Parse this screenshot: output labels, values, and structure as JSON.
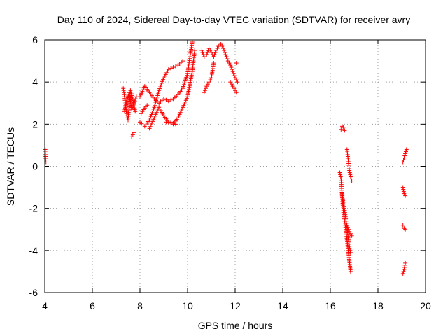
{
  "chart_data": {
    "type": "scatter",
    "title": "Day 110 of 2024, Sidereal Day-to-day VTEC variation (SDTVAR) for receiver avry",
    "xlabel": "GPS time / hours",
    "ylabel": "SDTVAR / TECUs",
    "xlim": [
      4,
      20
    ],
    "ylim": [
      -6,
      6
    ],
    "xticks": [
      4,
      6,
      8,
      10,
      12,
      14,
      16,
      18,
      20
    ],
    "yticks": [
      -6,
      -4,
      -2,
      0,
      2,
      4,
      6
    ],
    "grid": true,
    "legend": "none",
    "marker": "+",
    "series_color": "#ff0000",
    "segments": [
      {
        "x": [
          4.02,
          4.04,
          4.05
        ],
        "y": [
          0.8,
          0.3,
          0.2
        ]
      },
      {
        "x": [
          7.3,
          7.35,
          7.4,
          7.45,
          7.5,
          7.55,
          7.6,
          7.7,
          7.8
        ],
        "y": [
          3.7,
          3.3,
          2.8,
          2.4,
          2.2,
          3.0,
          3.6,
          3.2,
          2.6
        ]
      },
      {
        "x": [
          7.35,
          7.45,
          7.55,
          7.65,
          7.75,
          7.85
        ],
        "y": [
          2.6,
          3.1,
          3.5,
          2.7,
          3.0,
          3.3
        ]
      },
      {
        "x": [
          7.65,
          7.7,
          7.75
        ],
        "y": [
          1.4,
          1.5,
          1.6
        ]
      },
      {
        "x": [
          8.0,
          8.2,
          8.4,
          8.6,
          8.8,
          9.0,
          9.2,
          9.4,
          9.6,
          9.8,
          10.0,
          10.1,
          10.2
        ],
        "y": [
          3.3,
          3.8,
          3.5,
          3.2,
          3.0,
          3.2,
          3.1,
          3.2,
          3.4,
          3.7,
          4.4,
          5.2,
          5.9
        ]
      },
      {
        "x": [
          8.0,
          8.2,
          8.4,
          8.6,
          8.8,
          9.0,
          9.2,
          9.4,
          9.6,
          9.8
        ],
        "y": [
          2.1,
          1.9,
          2.2,
          2.8,
          3.6,
          4.2,
          4.6,
          4.7,
          4.8,
          5.0
        ]
      },
      {
        "x": [
          8.05,
          8.15,
          8.3
        ],
        "y": [
          2.5,
          2.7,
          2.9
        ]
      },
      {
        "x": [
          8.4,
          8.6,
          8.8,
          9.0,
          9.2,
          9.4,
          9.6,
          9.8,
          10.0,
          10.2,
          10.3
        ],
        "y": [
          1.8,
          2.3,
          2.8,
          2.4,
          2.1,
          2.0,
          2.3,
          2.8,
          3.3,
          4.5,
          5.5
        ]
      },
      {
        "x": [
          9.1,
          9.3,
          9.5
        ],
        "y": [
          2.1,
          2.1,
          2.0
        ]
      },
      {
        "x": [
          10.6,
          10.7,
          10.8,
          10.9,
          11.0,
          11.1,
          11.2,
          11.3,
          11.4,
          11.5,
          11.6,
          11.7,
          11.8,
          11.9,
          12.0,
          12.1
        ],
        "y": [
          5.5,
          5.2,
          5.3,
          5.6,
          5.4,
          5.2,
          5.5,
          5.7,
          5.8,
          5.6,
          5.3,
          5.0,
          4.8,
          4.5,
          4.2,
          4.0
        ]
      },
      {
        "x": [
          10.7,
          10.8,
          10.9,
          11.0,
          11.1
        ],
        "y": [
          3.5,
          3.8,
          4.0,
          4.2,
          4.9
        ]
      },
      {
        "x": [
          11.8,
          11.9,
          12.0,
          12.05
        ],
        "y": [
          4.0,
          3.8,
          3.6,
          3.5
        ]
      },
      {
        "x": [
          12.05
        ],
        "y": [
          4.9
        ]
      },
      {
        "x": [
          16.45,
          16.5,
          16.55,
          16.6
        ],
        "y": [
          1.75,
          1.9,
          1.85,
          1.7
        ]
      },
      {
        "x": [
          16.4,
          16.45,
          16.5,
          16.55,
          16.6,
          16.65,
          16.7,
          16.75,
          16.8,
          16.85
        ],
        "y": [
          -0.3,
          -0.6,
          -1.5,
          -2.2,
          -2.6,
          -3.0,
          -3.5,
          -4.0,
          -4.5,
          -5.0
        ]
      },
      {
        "x": [
          16.5,
          16.55,
          16.6,
          16.65,
          16.7,
          16.75,
          16.8,
          16.85
        ],
        "y": [
          -1.3,
          -1.8,
          -2.1,
          -2.5,
          -2.9,
          -3.4,
          -3.8,
          -4.1
        ]
      },
      {
        "x": [
          16.7,
          16.75,
          16.8,
          16.85,
          16.9
        ],
        "y": [
          0.8,
          0.3,
          -0.2,
          -0.5,
          -0.7
        ]
      },
      {
        "x": [
          16.7,
          16.8,
          16.9
        ],
        "y": [
          -2.8,
          -3.1,
          -3.3
        ]
      },
      {
        "x": [
          19.05,
          19.1,
          19.15,
          19.2
        ],
        "y": [
          0.2,
          0.4,
          0.6,
          0.8
        ]
      },
      {
        "x": [
          19.05,
          19.1,
          19.15
        ],
        "y": [
          -1.0,
          -1.3,
          -1.4
        ]
      },
      {
        "x": [
          19.05,
          19.1,
          19.15
        ],
        "y": [
          -2.8,
          -2.95,
          -3.0
        ]
      },
      {
        "x": [
          19.05,
          19.1,
          19.15
        ],
        "y": [
          -5.1,
          -4.9,
          -4.6
        ]
      }
    ]
  }
}
